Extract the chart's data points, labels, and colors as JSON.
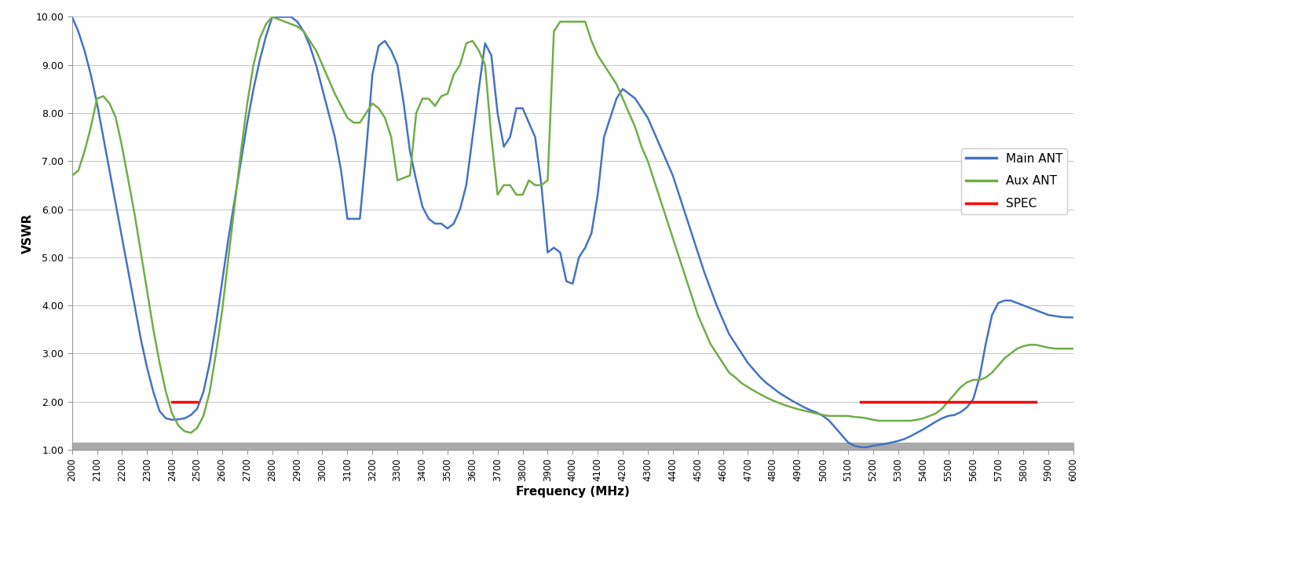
{
  "title": "",
  "xlabel": "Frequency (MHz)",
  "ylabel": "VSWR",
  "xlim": [
    2000,
    6000
  ],
  "ylim": [
    1.0,
    10.0
  ],
  "yticks": [
    1.0,
    2.0,
    3.0,
    4.0,
    5.0,
    6.0,
    7.0,
    8.0,
    9.0,
    10.0
  ],
  "ytick_labels": [
    "1.00",
    "2.00",
    "3.00",
    "4.00",
    "5.00",
    "6.00",
    "7.00",
    "8.00",
    "9.00",
    "10.00"
  ],
  "xtick_step": 100,
  "spec_value": 2.0,
  "spec_ranges": [
    [
      2400,
      2500
    ],
    [
      5150,
      5850
    ]
  ],
  "main_color": "#4472C4",
  "aux_color": "#70AD47",
  "spec_color": "#FF0000",
  "legend_labels": [
    "Main ANT",
    "Aux ANT",
    "SPEC"
  ],
  "line_width": 1.8,
  "figsize": [
    16.67,
    7.16
  ],
  "dpi": 100,
  "main_x": [
    2000,
    2025,
    2050,
    2075,
    2100,
    2125,
    2150,
    2175,
    2200,
    2225,
    2250,
    2275,
    2300,
    2325,
    2350,
    2375,
    2400,
    2425,
    2450,
    2475,
    2500,
    2525,
    2550,
    2575,
    2600,
    2625,
    2650,
    2675,
    2700,
    2725,
    2750,
    2775,
    2800,
    2825,
    2850,
    2875,
    2900,
    2925,
    2950,
    2975,
    3000,
    3025,
    3050,
    3075,
    3100,
    3125,
    3150,
    3175,
    3200,
    3225,
    3250,
    3275,
    3300,
    3325,
    3350,
    3375,
    3400,
    3425,
    3450,
    3475,
    3500,
    3525,
    3550,
    3575,
    3600,
    3625,
    3650,
    3675,
    3700,
    3725,
    3750,
    3775,
    3800,
    3825,
    3850,
    3875,
    3900,
    3925,
    3950,
    3975,
    4000,
    4025,
    4050,
    4075,
    4100,
    4125,
    4150,
    4175,
    4200,
    4225,
    4250,
    4275,
    4300,
    4325,
    4350,
    4375,
    4400,
    4425,
    4450,
    4475,
    4500,
    4525,
    4550,
    4575,
    4600,
    4625,
    4650,
    4675,
    4700,
    4725,
    4750,
    4775,
    4800,
    4825,
    4850,
    4875,
    4900,
    4925,
    4950,
    4975,
    5000,
    5025,
    5050,
    5075,
    5100,
    5125,
    5150,
    5175,
    5200,
    5225,
    5250,
    5275,
    5300,
    5325,
    5350,
    5375,
    5400,
    5425,
    5450,
    5475,
    5500,
    5525,
    5550,
    5575,
    5600,
    5625,
    5650,
    5675,
    5700,
    5725,
    5750,
    5775,
    5800,
    5825,
    5850,
    5875,
    5900,
    5925,
    5950,
    5975,
    6000
  ],
  "main_y": [
    10.0,
    9.7,
    9.3,
    8.8,
    8.2,
    7.5,
    6.8,
    6.1,
    5.4,
    4.7,
    4.0,
    3.3,
    2.7,
    2.2,
    1.8,
    1.65,
    1.62,
    1.63,
    1.65,
    1.72,
    1.85,
    2.2,
    2.8,
    3.6,
    4.5,
    5.4,
    6.2,
    7.0,
    7.8,
    8.5,
    9.1,
    9.6,
    10.0,
    10.0,
    10.0,
    10.0,
    9.9,
    9.7,
    9.4,
    9.0,
    8.5,
    8.0,
    7.5,
    6.8,
    5.8,
    5.8,
    5.8,
    7.2,
    8.8,
    9.4,
    9.5,
    9.3,
    9.0,
    8.2,
    7.2,
    6.6,
    6.05,
    5.8,
    5.7,
    5.7,
    5.6,
    5.7,
    6.0,
    6.5,
    7.5,
    8.5,
    9.45,
    9.2,
    8.0,
    7.3,
    7.5,
    8.1,
    8.1,
    7.8,
    7.5,
    6.5,
    5.1,
    5.2,
    5.1,
    4.5,
    4.45,
    5.0,
    5.2,
    5.5,
    6.3,
    7.5,
    7.9,
    8.3,
    8.5,
    8.4,
    8.3,
    8.1,
    7.9,
    7.6,
    7.3,
    7.0,
    6.7,
    6.3,
    5.9,
    5.5,
    5.1,
    4.7,
    4.35,
    4.0,
    3.7,
    3.4,
    3.2,
    3.0,
    2.8,
    2.65,
    2.5,
    2.38,
    2.28,
    2.18,
    2.1,
    2.02,
    1.95,
    1.88,
    1.82,
    1.77,
    1.7,
    1.6,
    1.45,
    1.3,
    1.15,
    1.08,
    1.05,
    1.05,
    1.08,
    1.1,
    1.12,
    1.15,
    1.18,
    1.22,
    1.28,
    1.35,
    1.42,
    1.5,
    1.58,
    1.65,
    1.7,
    1.72,
    1.78,
    1.88,
    2.05,
    2.5,
    3.2,
    3.8,
    4.05,
    4.1,
    4.1,
    4.05,
    4.0,
    3.95,
    3.9,
    3.85,
    3.8,
    3.78,
    3.76,
    3.75,
    3.75
  ],
  "aux_x": [
    2000,
    2025,
    2050,
    2075,
    2100,
    2125,
    2150,
    2175,
    2200,
    2225,
    2250,
    2275,
    2300,
    2325,
    2350,
    2375,
    2400,
    2425,
    2450,
    2475,
    2500,
    2525,
    2550,
    2575,
    2600,
    2625,
    2650,
    2675,
    2700,
    2725,
    2750,
    2775,
    2800,
    2825,
    2850,
    2875,
    2900,
    2925,
    2950,
    2975,
    3000,
    3025,
    3050,
    3075,
    3100,
    3125,
    3150,
    3175,
    3200,
    3225,
    3250,
    3275,
    3300,
    3325,
    3350,
    3375,
    3400,
    3425,
    3450,
    3475,
    3500,
    3525,
    3550,
    3575,
    3600,
    3625,
    3650,
    3675,
    3700,
    3725,
    3750,
    3775,
    3800,
    3825,
    3850,
    3875,
    3900,
    3925,
    3950,
    3975,
    4000,
    4025,
    4050,
    4075,
    4100,
    4125,
    4150,
    4175,
    4200,
    4225,
    4250,
    4275,
    4300,
    4325,
    4350,
    4375,
    4400,
    4425,
    4450,
    4475,
    4500,
    4525,
    4550,
    4575,
    4600,
    4625,
    4650,
    4675,
    4700,
    4725,
    4750,
    4775,
    4800,
    4825,
    4850,
    4875,
    4900,
    4925,
    4950,
    4975,
    5000,
    5025,
    5050,
    5075,
    5100,
    5125,
    5150,
    5175,
    5200,
    5225,
    5250,
    5275,
    5300,
    5325,
    5350,
    5375,
    5400,
    5425,
    5450,
    5475,
    5500,
    5525,
    5550,
    5575,
    5600,
    5625,
    5650,
    5675,
    5700,
    5725,
    5750,
    5775,
    5800,
    5825,
    5850,
    5875,
    5900,
    5925,
    5950,
    5975,
    6000
  ],
  "aux_y": [
    6.7,
    6.8,
    7.2,
    7.7,
    8.3,
    8.35,
    8.2,
    7.9,
    7.3,
    6.6,
    5.9,
    5.1,
    4.3,
    3.5,
    2.8,
    2.2,
    1.75,
    1.5,
    1.38,
    1.35,
    1.45,
    1.7,
    2.2,
    3.0,
    3.9,
    5.0,
    6.1,
    7.2,
    8.2,
    9.0,
    9.55,
    9.85,
    10.0,
    9.95,
    9.9,
    9.85,
    9.8,
    9.7,
    9.5,
    9.3,
    9.0,
    8.7,
    8.4,
    8.15,
    7.9,
    7.8,
    7.8,
    8.0,
    8.2,
    8.1,
    7.9,
    7.5,
    6.6,
    6.65,
    6.7,
    8.0,
    8.3,
    8.3,
    8.15,
    8.35,
    8.4,
    8.8,
    9.0,
    9.45,
    9.5,
    9.3,
    9.0,
    7.5,
    6.3,
    6.5,
    6.5,
    6.3,
    6.3,
    6.6,
    6.5,
    6.5,
    6.6,
    9.7,
    9.9,
    9.9,
    9.9,
    9.9,
    9.9,
    9.5,
    9.2,
    9.0,
    8.8,
    8.6,
    8.3,
    8.0,
    7.7,
    7.3,
    7.0,
    6.6,
    6.2,
    5.8,
    5.4,
    5.0,
    4.6,
    4.2,
    3.8,
    3.5,
    3.2,
    3.0,
    2.8,
    2.6,
    2.5,
    2.38,
    2.3,
    2.22,
    2.15,
    2.08,
    2.02,
    1.97,
    1.92,
    1.88,
    1.84,
    1.81,
    1.78,
    1.75,
    1.72,
    1.7,
    1.7,
    1.7,
    1.7,
    1.68,
    1.67,
    1.65,
    1.62,
    1.6,
    1.6,
    1.6,
    1.6,
    1.6,
    1.6,
    1.62,
    1.65,
    1.7,
    1.75,
    1.85,
    2.0,
    2.15,
    2.3,
    2.4,
    2.45,
    2.45,
    2.5,
    2.6,
    2.75,
    2.9,
    3.0,
    3.1,
    3.15,
    3.18,
    3.18,
    3.15,
    3.12,
    3.1,
    3.1,
    3.1,
    3.1
  ]
}
